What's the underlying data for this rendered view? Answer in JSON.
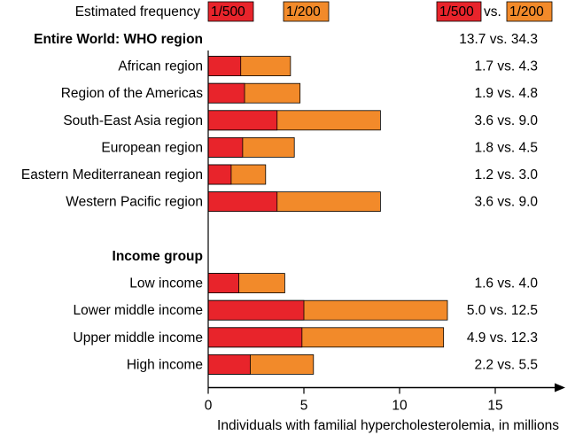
{
  "colors": {
    "freq_1_500": "#e8242b",
    "freq_1_200": "#f28a2a",
    "axis": "#000000"
  },
  "legend": {
    "label": "Estimated frequency",
    "freq_a": "1/500",
    "freq_b": "1/200",
    "compare_a": "1/500",
    "compare_vs": "vs.",
    "compare_b": "1/200"
  },
  "chart_data": {
    "type": "bar",
    "orientation": "horizontal",
    "stacked": true,
    "xlabel": "Individuals with familial hypercholesterolemia, in millions",
    "xlim": [
      0,
      18
    ],
    "xticks": [
      0,
      5,
      10,
      15
    ],
    "sections": [
      {
        "header": "Entire World: WHO region",
        "header_value": "13.7 vs. 34.3",
        "rows": [
          {
            "category": "African region",
            "v500": 1.7,
            "v200": 4.3,
            "value_text": "1.7 vs.   4.3"
          },
          {
            "category": "Region of the Americas",
            "v500": 1.9,
            "v200": 4.8,
            "value_text": "1.9 vs.   4.8"
          },
          {
            "category": "South-East Asia region",
            "v500": 3.6,
            "v200": 9.0,
            "value_text": "3.6 vs.   9.0"
          },
          {
            "category": "European region",
            "v500": 1.8,
            "v200": 4.5,
            "value_text": "1.8 vs.   4.5"
          },
          {
            "category": "Eastern Mediterranean region",
            "v500": 1.2,
            "v200": 3.0,
            "value_text": "1.2 vs.   3.0"
          },
          {
            "category": "Western Pacific region",
            "v500": 3.6,
            "v200": 9.0,
            "value_text": "3.6 vs.   9.0"
          }
        ]
      },
      {
        "header": "Income group",
        "header_value": "",
        "rows": [
          {
            "category": "Low income",
            "v500": 1.6,
            "v200": 4.0,
            "value_text": "1.6 vs.   4.0"
          },
          {
            "category": "Lower middle income",
            "v500": 5.0,
            "v200": 12.5,
            "value_text": "5.0 vs. 12.5"
          },
          {
            "category": "Upper middle income",
            "v500": 4.9,
            "v200": 12.3,
            "value_text": "4.9 vs. 12.3"
          },
          {
            "category": "High income",
            "v500": 2.2,
            "v200": 5.5,
            "value_text": "2.2 vs.   5.5"
          }
        ]
      }
    ]
  }
}
